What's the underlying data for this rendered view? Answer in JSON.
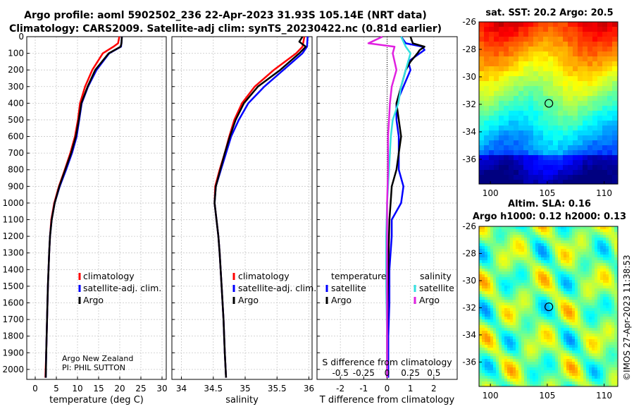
{
  "title_line1": "Argo profile: aoml 5902502_236 22-Apr-2023 31.93S 105.14E (NRT data)",
  "title_line2": "Climatology: CARS2009. Satellite-adj clim: synTS_20230422.nc (0.81d earlier)",
  "sst_title": "sat. SST: 20.2 Argo: 20.5",
  "sla_title1": "Altim. SLA: 0.16",
  "sla_title2": "Argo h1000: 0.12 h2000: 0.13",
  "timestamp": "©IMOS 27-Apr-2023 11:38:53",
  "colors": {
    "climatology": "#ff0000",
    "satellite": "#0000ff",
    "argo": "#000000",
    "sat_s_diff": "#33e0e0",
    "argo_s_diff": "#e020e0"
  },
  "chart_data": [
    {
      "type": "line",
      "name": "temperature-profile",
      "xlabel": "temperature (deg C)",
      "ylabel": "",
      "xlim": [
        -2,
        31
      ],
      "ylim": [
        2060,
        0
      ],
      "xticks": [
        0,
        5,
        10,
        15,
        20,
        25,
        30
      ],
      "yticks": [
        0,
        100,
        200,
        300,
        400,
        500,
        600,
        700,
        800,
        900,
        1000,
        1100,
        1200,
        1300,
        1400,
        1500,
        1600,
        1700,
        1800,
        1900,
        2000
      ],
      "legend": [
        "climatology",
        "satellite-adj. clim.",
        "Argo"
      ],
      "note1": "Argo New Zealand",
      "note2": "PI: PHIL SUTTON",
      "series": [
        {
          "name": "climatology",
          "depth": [
            0,
            40,
            60,
            100,
            200,
            300,
            400,
            500,
            600,
            700,
            800,
            900,
            1000,
            1100,
            1200,
            1300,
            1500,
            1700,
            1900,
            2050
          ],
          "values": [
            19.9,
            19.6,
            18.5,
            16.0,
            13.5,
            11.8,
            10.6,
            10.1,
            9.4,
            8.3,
            7.0,
            5.6,
            4.5,
            3.8,
            3.5,
            3.3,
            3.0,
            2.8,
            2.6,
            2.4
          ]
        },
        {
          "name": "satellite-adj. clim.",
          "depth": [
            0,
            40,
            60,
            100,
            200,
            300,
            400,
            500,
            600,
            700,
            800,
            900,
            1000,
            1100,
            1200,
            1300,
            1500,
            1700,
            1900,
            2050
          ],
          "values": [
            20.5,
            20.4,
            20.3,
            17.5,
            14.5,
            12.5,
            11.0,
            10.4,
            9.8,
            8.7,
            7.3,
            5.8,
            4.6,
            3.9,
            3.5,
            3.3,
            3.0,
            2.8,
            2.6,
            2.5
          ]
        },
        {
          "name": "Argo",
          "depth": [
            0,
            40,
            60,
            100,
            200,
            300,
            400,
            500,
            600,
            700,
            800,
            900,
            1000,
            1100,
            1200,
            1300,
            1500,
            1700,
            1900,
            2050
          ],
          "values": [
            20.5,
            20.4,
            20.2,
            17.4,
            14.2,
            12.4,
            10.9,
            10.3,
            9.6,
            8.5,
            7.1,
            5.7,
            4.6,
            3.9,
            3.5,
            3.3,
            3.0,
            2.8,
            2.6,
            2.5
          ]
        }
      ]
    },
    {
      "type": "line",
      "name": "salinity-profile",
      "xlabel": "salinity",
      "ylabel": "",
      "xlim": [
        33.85,
        36.05
      ],
      "ylim": [
        2060,
        0
      ],
      "xticks": [
        34,
        34.5,
        35,
        35.5,
        36
      ],
      "legend": [
        "climatology",
        "satellite-adj. clim.",
        "Argo"
      ],
      "series": [
        {
          "name": "climatology",
          "depth": [
            0,
            60,
            100,
            200,
            300,
            400,
            500,
            600,
            700,
            800,
            900,
            1000,
            1100,
            1200,
            1300,
            1500,
            1700,
            1900,
            2050
          ],
          "values": [
            35.93,
            35.9,
            35.8,
            35.45,
            35.15,
            34.95,
            34.83,
            34.75,
            34.68,
            34.6,
            34.53,
            34.52,
            34.55,
            34.58,
            34.6,
            34.63,
            34.66,
            34.68,
            34.7
          ]
        },
        {
          "name": "satellite-adj. clim.",
          "depth": [
            0,
            60,
            100,
            200,
            300,
            400,
            500,
            600,
            700,
            800,
            900,
            1000,
            1100,
            1200,
            1300,
            1500,
            1700,
            1900,
            2050
          ],
          "values": [
            35.98,
            35.97,
            35.9,
            35.6,
            35.3,
            35.05,
            34.9,
            34.78,
            34.7,
            34.62,
            34.54,
            34.52,
            34.55,
            34.58,
            34.6,
            34.63,
            34.66,
            34.68,
            34.7
          ]
        },
        {
          "name": "Argo",
          "depth": [
            0,
            30,
            60,
            100,
            200,
            300,
            400,
            500,
            600,
            700,
            800,
            900,
            1000,
            1100,
            1200,
            1300,
            1500,
            1700,
            1900,
            2050
          ],
          "values": [
            35.9,
            35.85,
            35.95,
            35.85,
            35.55,
            35.2,
            34.98,
            34.85,
            34.76,
            34.68,
            34.61,
            34.54,
            34.52,
            34.55,
            34.58,
            34.6,
            34.63,
            34.66,
            34.68,
            34.7
          ]
        }
      ]
    },
    {
      "type": "line",
      "name": "difference-profile",
      "xlabel": "T difference from climatology",
      "xlabel2": "S difference from climatology",
      "xlim": [
        -3,
        3
      ],
      "ylim": [
        2060,
        0
      ],
      "xticks": [
        -2,
        -1,
        0,
        1,
        2
      ],
      "s_ticks": [
        "-0.5",
        "-0.25",
        "0",
        "0.25",
        "0.5"
      ],
      "legend_t_title": "temperature",
      "legend_s_title": "salinity",
      "legend_t": [
        "satellite",
        "Argo"
      ],
      "legend_s": [
        "satellite",
        "Argo"
      ],
      "series": [
        {
          "name": "satellite T diff",
          "depth": [
            0,
            40,
            60,
            80,
            100,
            150,
            200,
            300,
            400,
            500,
            600,
            700,
            800,
            900,
            1000,
            1100,
            1200,
            1400,
            1600,
            1800,
            2050
          ],
          "values": [
            0.6,
            0.8,
            1.5,
            1.6,
            1.4,
            0.9,
            1.0,
            0.7,
            0.4,
            0.4,
            0.5,
            0.5,
            0.5,
            0.7,
            0.6,
            0.2,
            0.2,
            0.1,
            0.1,
            0.05,
            0.05
          ]
        },
        {
          "name": "Argo T diff",
          "depth": [
            0,
            40,
            60,
            80,
            100,
            150,
            200,
            300,
            400,
            500,
            600,
            700,
            800,
            900,
            1000,
            1100,
            1200,
            1400,
            1600,
            1800,
            2050
          ],
          "values": [
            1.0,
            1.1,
            1.6,
            1.4,
            1.3,
            1.0,
            0.8,
            0.6,
            0.4,
            0.5,
            0.6,
            0.5,
            0.4,
            0.2,
            0.15,
            0.1,
            0.08,
            0.05,
            0.02,
            0.0,
            0.0
          ]
        },
        {
          "name": "satellite S diff",
          "depth": [
            0,
            60,
            100,
            200,
            300,
            400,
            500,
            600,
            800,
            1000,
            1200,
            1500,
            1800,
            2050
          ],
          "values": [
            0.15,
            0.2,
            0.25,
            0.2,
            0.15,
            0.12,
            0.06,
            0.04,
            0.02,
            0.0,
            -0.01,
            -0.01,
            0.0,
            0.0
          ]
        },
        {
          "name": "Argo S diff",
          "depth": [
            0,
            40,
            60,
            100,
            200,
            300,
            400,
            500,
            600,
            800,
            1000,
            1200,
            1500,
            1800,
            2050
          ],
          "values": [
            -0.05,
            -0.2,
            0.08,
            0.06,
            0.1,
            0.05,
            0.03,
            0.02,
            0.01,
            0.01,
            0.0,
            0.0,
            0.0,
            0.0,
            0.0
          ]
        }
      ]
    },
    {
      "type": "heatmap",
      "name": "sst-map",
      "title": "sat. SST: 20.2 Argo: 20.5",
      "xlim": [
        99,
        111.2
      ],
      "ylim": [
        -37.8,
        -26
      ],
      "xticks": [
        100,
        105,
        110
      ],
      "yticks": [
        -26,
        -28,
        -30,
        -32,
        -34,
        -36
      ],
      "argo_position": {
        "lon": 105.14,
        "lat": -31.93
      }
    },
    {
      "type": "heatmap",
      "name": "sla-map",
      "title": "Altim. SLA: 0.16",
      "xlim": [
        99,
        111.2
      ],
      "ylim": [
        -37.8,
        -26
      ],
      "xticks": [
        100,
        105,
        110
      ],
      "yticks": [
        -26,
        -28,
        -30,
        -32,
        -34,
        -36
      ],
      "argo_position": {
        "lon": 105.14,
        "lat": -31.93
      }
    }
  ]
}
